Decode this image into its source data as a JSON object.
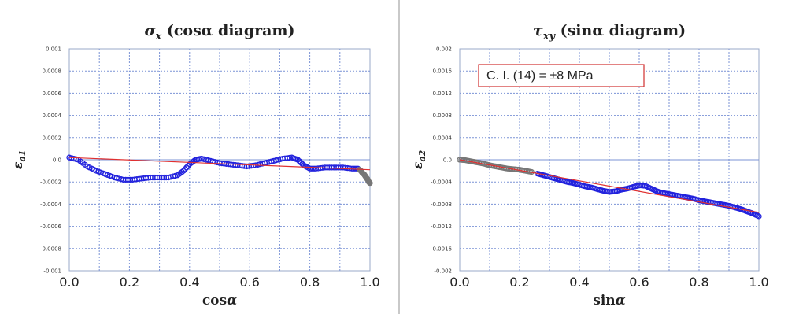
{
  "chart_data": [
    {
      "type": "scatter",
      "title": "σx (cosα diagram)",
      "xlabel": "cosα",
      "ylabel": "εa1",
      "xlim": [
        0.0,
        1.0
      ],
      "ylim": [
        -0.001,
        0.001
      ],
      "xticks": [
        "0.0",
        "0.2",
        "0.4",
        "0.6",
        "0.8",
        "1.0"
      ],
      "yticks": [
        "-0.001",
        "-0.0008",
        "-0.0006",
        "-0.0004",
        "-0.0002",
        "0.0",
        "0.0002",
        "0.0004",
        "0.0006",
        "0.0008",
        "0.001"
      ],
      "grid": true,
      "colors": {
        "measured": "#2222dd",
        "fit": "#e03030",
        "outlier": "#777777"
      },
      "series": [
        {
          "marker": "circle",
          "x": [
            0.0,
            0.03,
            0.06,
            0.09,
            0.12,
            0.15,
            0.18,
            0.21,
            0.24,
            0.27,
            0.3,
            0.33,
            0.36,
            0.38,
            0.4,
            0.42,
            0.44,
            0.47,
            0.5,
            0.53,
            0.56,
            0.59,
            0.62,
            0.65,
            0.68,
            0.71,
            0.74,
            0.76,
            0.78,
            0.8,
            0.82,
            0.85,
            0.88,
            0.91,
            0.94,
            0.96
          ],
          "y": [
            2e-05,
            0.0,
            -6e-05,
            -0.0001,
            -0.00013,
            -0.00016,
            -0.00018,
            -0.00018,
            -0.00017,
            -0.00016,
            -0.00016,
            -0.00016,
            -0.00014,
            -0.0001,
            -4e-05,
            0.0,
            1e-05,
            -1e-05,
            -3e-05,
            -4e-05,
            -5e-05,
            -6e-05,
            -5e-05,
            -3e-05,
            -1e-05,
            1e-05,
            2e-05,
            0.0,
            -5e-05,
            -8e-05,
            -8e-05,
            -7e-05,
            -7e-05,
            -7e-05,
            -8e-05,
            -8e-05
          ]
        },
        {
          "marker": "circle",
          "x": [
            0.965,
            0.97,
            0.975,
            0.98,
            0.985,
            0.99,
            0.993,
            0.996,
            1.0
          ],
          "y": [
            -9e-05,
            -0.0001,
            -0.00012,
            -0.00013,
            -0.00015,
            -0.00017,
            -0.00018,
            -0.0002,
            -0.00021
          ]
        },
        {
          "marker": "line",
          "x": [
            0.0,
            1.0
          ],
          "y": [
            2e-05,
            -9e-05
          ]
        }
      ]
    },
    {
      "type": "scatter",
      "title": "τxy (sinα diagram)",
      "xlabel": "sinα",
      "ylabel": "εa2",
      "annotation": "C. I. (14) = ±8 MPa",
      "xlim": [
        0.0,
        1.0
      ],
      "ylim": [
        -0.002,
        0.002
      ],
      "xticks": [
        "0.0",
        "0.2",
        "0.4",
        "0.6",
        "0.8",
        "1.0"
      ],
      "yticks": [
        "-0.002",
        "-0.0016",
        "-0.0012",
        "-0.0008",
        "-0.0004",
        "0.0",
        "0.0004",
        "0.0008",
        "0.0012",
        "0.0016",
        "0.002"
      ],
      "grid": true,
      "colors": {
        "measured": "#2222dd",
        "fit": "#e03030",
        "outlier": "#777777"
      },
      "series": [
        {
          "marker": "circle",
          "x": [
            0.0,
            0.02,
            0.04,
            0.06,
            0.08,
            0.1,
            0.12,
            0.14,
            0.16,
            0.18,
            0.2,
            0.22,
            0.24
          ],
          "y": [
            0.0,
            -1e-05,
            -3e-05,
            -5e-05,
            -7e-05,
            -0.0001,
            -0.00012,
            -0.00014,
            -0.00016,
            -0.00017,
            -0.00018,
            -0.0002,
            -0.00022
          ]
        },
        {
          "marker": "circle",
          "x": [
            0.26,
            0.28,
            0.3,
            0.32,
            0.34,
            0.36,
            0.38,
            0.4,
            0.42,
            0.44,
            0.46,
            0.48,
            0.5,
            0.52,
            0.54,
            0.56,
            0.58,
            0.6,
            0.62,
            0.64,
            0.66,
            0.68,
            0.7,
            0.72,
            0.74,
            0.76,
            0.78,
            0.8,
            0.82,
            0.84,
            0.86,
            0.88,
            0.9,
            0.92,
            0.94,
            0.96,
            0.98,
            1.0
          ],
          "y": [
            -0.00025,
            -0.00028,
            -0.00031,
            -0.00034,
            -0.00037,
            -0.0004,
            -0.00042,
            -0.00045,
            -0.00048,
            -0.0005,
            -0.00053,
            -0.00056,
            -0.00058,
            -0.00057,
            -0.00054,
            -0.00052,
            -0.00049,
            -0.00046,
            -0.00047,
            -0.00052,
            -0.00057,
            -0.0006,
            -0.00062,
            -0.00064,
            -0.00066,
            -0.00068,
            -0.0007,
            -0.00073,
            -0.00075,
            -0.00077,
            -0.00079,
            -0.00081,
            -0.00083,
            -0.00086,
            -0.00089,
            -0.00093,
            -0.00097,
            -0.00102
          ]
        },
        {
          "marker": "line",
          "x": [
            0.0,
            1.0
          ],
          "y": [
            0.0,
            -0.00095
          ]
        }
      ]
    }
  ]
}
